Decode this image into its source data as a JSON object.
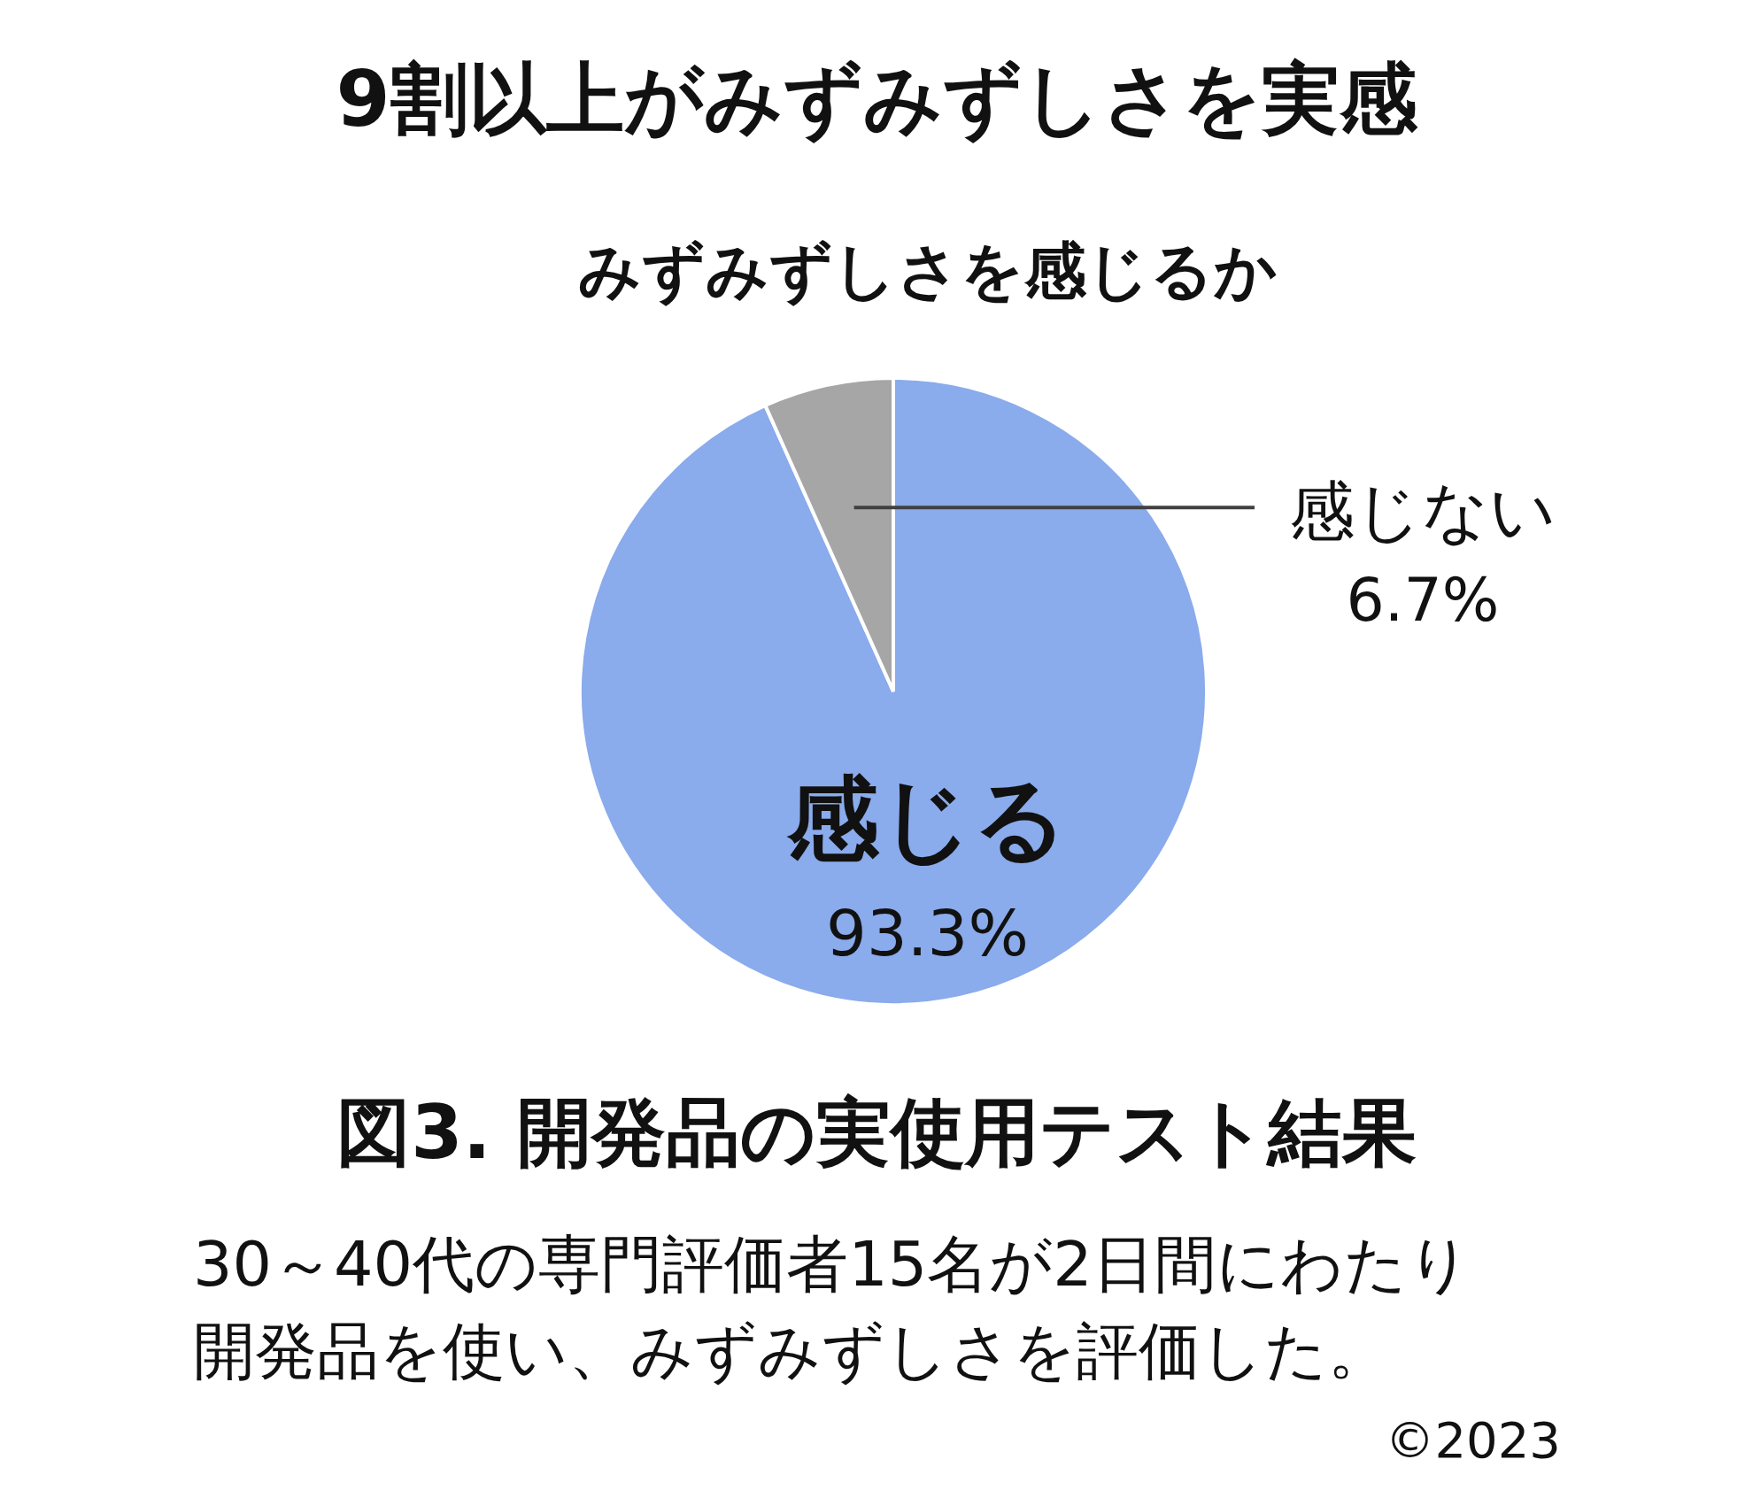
{
  "chart_data": {
    "type": "pie",
    "title": "9割以上がみずみずしさを実感",
    "subtitle": "みずみずしさを感じるか",
    "categories": [
      "感じる",
      "感じない"
    ],
    "values": [
      93.3,
      6.7
    ],
    "colors": [
      "#8aabec",
      "#a6a6a6"
    ],
    "value_labels": [
      "93.3%",
      "6.7%"
    ],
    "annotations": [
      "図3. 開発品の実使用テスト結果",
      "30～40代の専門評価者15名が2日間にわたり",
      "開発品を使い、みずみずしさを評価した。",
      "©2023"
    ]
  }
}
